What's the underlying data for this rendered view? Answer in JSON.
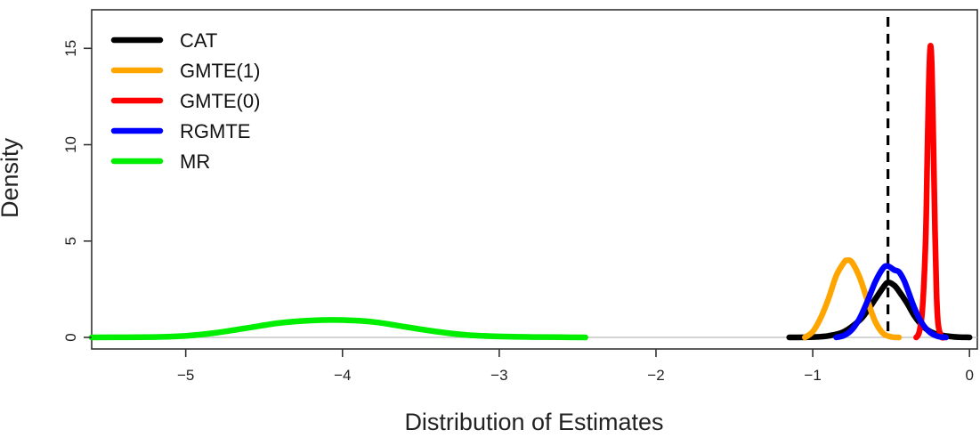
{
  "chart_data": {
    "type": "line",
    "title": "",
    "xlabel": "Distribution of Estimates",
    "ylabel": "Density",
    "xlim": [
      -5.6,
      0.05
    ],
    "ylim": [
      -0.6,
      17
    ],
    "xticks": [
      -5,
      -4,
      -3,
      -2,
      -1,
      0
    ],
    "xtick_labels": [
      "−5",
      "−4",
      "−3",
      "−2",
      "−1",
      "0"
    ],
    "yticks": [
      0,
      5,
      10,
      15
    ],
    "ytick_labels": [
      "0",
      "5",
      "10",
      "15"
    ],
    "grid": false,
    "legend_position": "top-left",
    "reference_lines": [
      {
        "type": "vertical",
        "x": -0.52,
        "style": "dashed",
        "color": "#000000"
      },
      {
        "type": "horizontal",
        "y": 0,
        "style": "solid",
        "color": "#bbbbbb"
      }
    ],
    "series": [
      {
        "name": "CAT",
        "color": "#000000",
        "x": [
          -1.15,
          -1.0,
          -0.9,
          -0.8,
          -0.7,
          -0.65,
          -0.6,
          -0.55,
          -0.52,
          -0.48,
          -0.45,
          -0.4,
          -0.35,
          -0.3,
          -0.25,
          -0.2,
          -0.1,
          0.0
        ],
        "y": [
          0.0,
          0.02,
          0.08,
          0.3,
          0.9,
          1.4,
          2.0,
          2.6,
          2.85,
          2.7,
          2.4,
          1.8,
          1.1,
          0.6,
          0.3,
          0.15,
          0.03,
          0.0
        ]
      },
      {
        "name": "GMTE(1)",
        "color": "#ffa500",
        "x": [
          -1.05,
          -1.0,
          -0.95,
          -0.9,
          -0.85,
          -0.8,
          -0.78,
          -0.75,
          -0.7,
          -0.65,
          -0.6,
          -0.55,
          -0.5,
          -0.45
        ],
        "y": [
          0.0,
          0.3,
          1.0,
          2.0,
          3.2,
          3.9,
          4.0,
          3.9,
          3.1,
          1.9,
          0.8,
          0.2,
          0.03,
          0.0
        ]
      },
      {
        "name": "GMTE(0)",
        "color": "#ff0000",
        "x": [
          -0.34,
          -0.32,
          -0.3,
          -0.28,
          -0.27,
          -0.26,
          -0.25,
          -0.24,
          -0.23,
          -0.22,
          -0.21,
          -0.2,
          -0.18,
          -0.16
        ],
        "y": [
          0.0,
          0.3,
          1.5,
          5.0,
          9.0,
          13.0,
          15.1,
          14.0,
          10.0,
          5.5,
          2.2,
          0.7,
          0.05,
          0.0
        ]
      },
      {
        "name": "RGMTE",
        "color": "#0000ff",
        "x": [
          -0.85,
          -0.8,
          -0.75,
          -0.7,
          -0.65,
          -0.6,
          -0.55,
          -0.52,
          -0.48,
          -0.45,
          -0.42,
          -0.4,
          -0.35,
          -0.3,
          -0.25,
          -0.2,
          -0.15
        ],
        "y": [
          0.0,
          0.1,
          0.4,
          1.0,
          1.9,
          2.9,
          3.6,
          3.7,
          3.5,
          3.4,
          3.0,
          2.6,
          1.5,
          0.7,
          0.25,
          0.05,
          0.0
        ]
      },
      {
        "name": "MR",
        "color": "#00ee00",
        "x": [
          -5.6,
          -5.2,
          -5.0,
          -4.8,
          -4.6,
          -4.4,
          -4.2,
          -4.0,
          -3.8,
          -3.6,
          -3.4,
          -3.2,
          -3.0,
          -2.8,
          -2.6,
          -2.45
        ],
        "y": [
          0.0,
          0.02,
          0.08,
          0.25,
          0.5,
          0.75,
          0.88,
          0.9,
          0.8,
          0.55,
          0.3,
          0.12,
          0.05,
          0.02,
          0.01,
          0.0
        ]
      }
    ]
  }
}
